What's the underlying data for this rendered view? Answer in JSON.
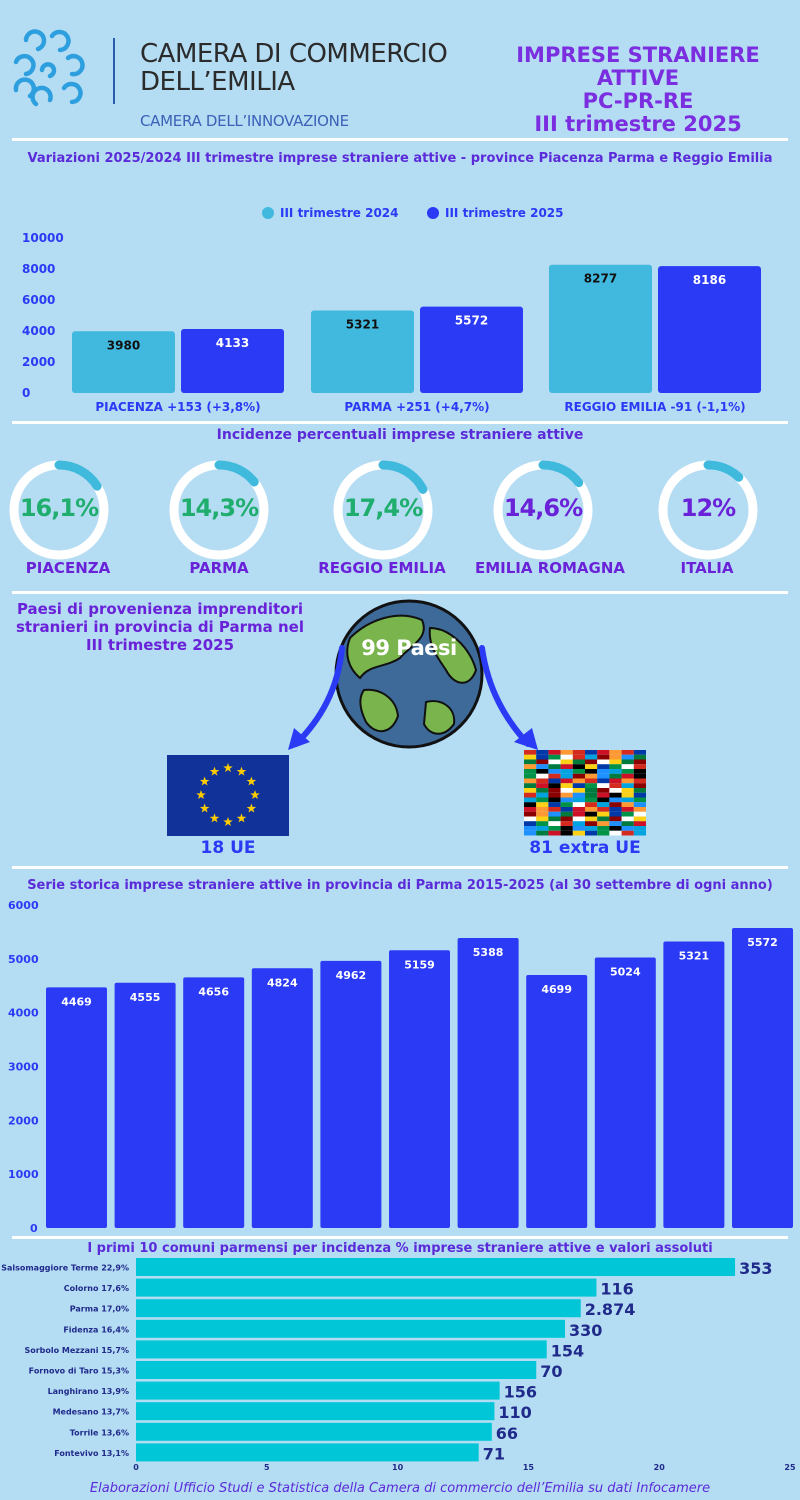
{
  "header": {
    "org_line1": "CAMERA DI COMMERCIO",
    "org_line2": "DELL’EMILIA",
    "org_tagline": "CAMERA DELL’INNOVAZIONE",
    "title_lines": [
      "IMPRESE STRANIERE",
      "ATTIVE",
      "PC-PR-RE",
      "III trimestre 2025"
    ]
  },
  "section1": {
    "title": "Variazioni 2025/2024 III trimestre imprese straniere attive - province Piacenza Parma e Reggio Emilia"
  },
  "section2": {
    "title": "Incidenze percentuali imprese straniere attive"
  },
  "section3": {
    "title": "Paesi di provenienza imprenditori stranieri in provincia di Parma nel III trimestre 2025",
    "globe_label": "99 Paesi",
    "eu_label": "18 UE",
    "extra_eu_label": "81 extra UE"
  },
  "section4": {
    "title": "Serie storica imprese straniere attive in provincia di Parma 2015-2025 (al 30 settembre di ogni anno)"
  },
  "section5": {
    "title": "I primi 10 comuni parmensi per incidenza % imprese straniere attive e valori assoluti"
  },
  "footer": "Elaborazioni Ufficio Studi e Statistica della Camera di commercio  dell’Emilia su dati Infocamere",
  "colors": {
    "series_2024": "#41b8dd",
    "series_2025": "#2a3af5",
    "towns_bar": "#00c6d8",
    "ring_accent": "#3fb9dc",
    "green_text": "#1fae6e",
    "purple_text": "#6a22d8"
  },
  "chart_data": [
    {
      "type": "bar",
      "categories": [
        "PIACENZA +153 (+3,8%)",
        "PARMA +251 (+4,7%)",
        "REGGIO EMILIA -91 (-1,1%)"
      ],
      "series": [
        {
          "name": "III trimestre 2024",
          "values": [
            3980,
            5321,
            8277
          ]
        },
        {
          "name": "III trimestre 2025",
          "values": [
            4133,
            5572,
            8186
          ]
        }
      ],
      "ylim": [
        0,
        10000
      ],
      "yticks": [
        0,
        2000,
        4000,
        6000,
        8000,
        10000
      ],
      "legend": "top-center"
    },
    {
      "type": "pie",
      "items": [
        {
          "name": "PIACENZA",
          "label": "16,1%",
          "value": 16.1
        },
        {
          "name": "PARMA",
          "label": "14,3%",
          "value": 14.3
        },
        {
          "name": "REGGIO EMILIA",
          "label": "17,4%",
          "value": 17.4
        },
        {
          "name": "EMILIA ROMAGNA",
          "label": "14,6%",
          "value": 14.6
        },
        {
          "name": "ITALIA",
          "label": "12%",
          "value": 12
        }
      ]
    },
    {
      "type": "bar",
      "values": [
        4469,
        4555,
        4656,
        4824,
        4962,
        5159,
        5388,
        4699,
        5024,
        5321,
        5572
      ],
      "ylim": [
        0,
        6000
      ],
      "yticks": [
        0,
        1000,
        2000,
        3000,
        4000,
        5000,
        6000
      ]
    },
    {
      "type": "bar",
      "orientation": "horizontal",
      "categories": [
        "Salsomaggiore Terme 22,9%",
        "Colorno 17,6%",
        "Parma 17,0%",
        "Fidenza 16,4%",
        "Sorbolo Mezzani 15,7%",
        "Fornovo di Taro 15,3%",
        "Langhirano 13,9%",
        "Medesano 13,7%",
        "Torrile 13,6%",
        "Fontevivo 13,1%"
      ],
      "values": [
        22.9,
        17.6,
        17.0,
        16.4,
        15.7,
        15.3,
        13.9,
        13.7,
        13.6,
        13.1
      ],
      "value_labels": [
        "353",
        "116",
        "2.874",
        "330",
        "154",
        "70",
        "156",
        "110",
        "66",
        "71"
      ],
      "xlim": [
        0,
        25
      ],
      "xticks": [
        0,
        5,
        10,
        15,
        20,
        25
      ]
    }
  ]
}
